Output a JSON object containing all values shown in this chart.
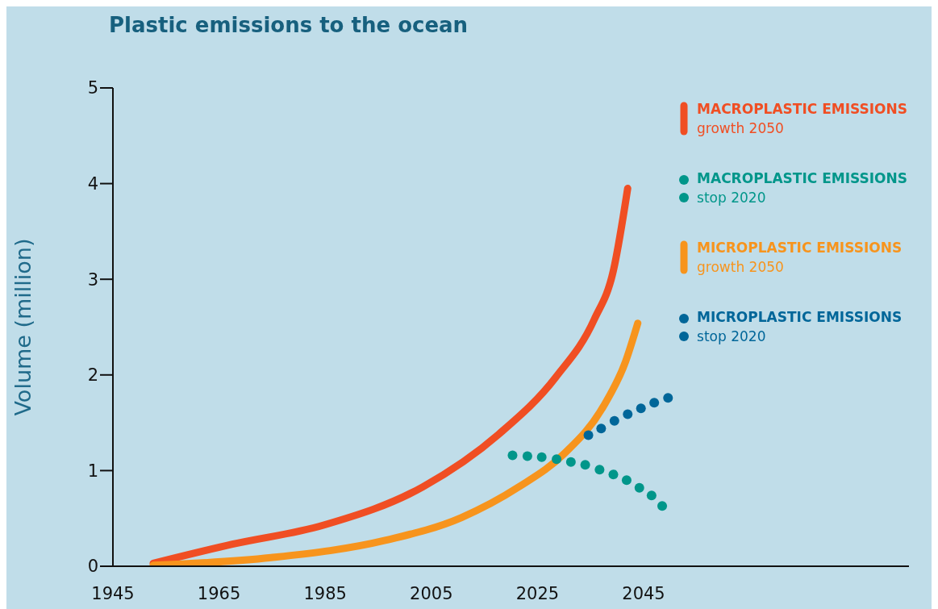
{
  "chart_data": {
    "type": "line",
    "title": "Plastic emissions to the ocean",
    "ylabel": "Volume (million)",
    "xlim": [
      1945,
      2095
    ],
    "xticks": [
      1945,
      1965,
      1985,
      2005,
      2025,
      2045
    ],
    "ylim": [
      0,
      5
    ],
    "yticks": [
      0,
      1,
      2,
      3,
      4,
      5
    ],
    "grid": false,
    "legend": "top right",
    "series": [
      {
        "name": "MACROPLASTIC EMISSIONS\ngrowth 2050",
        "color": "#f04e23",
        "x": [
          1952.6,
          1967.5,
          1984.7,
          2003.4,
          2017.7,
          2028.5,
          2035.7,
          2039.3,
          2042
        ],
        "values": [
          0.03,
          0.23,
          0.43,
          0.83,
          1.38,
          1.98,
          2.58,
          3.09,
          3.95
        ]
      },
      {
        "name": "MACROPLASTIC EMISSIONS\nstop 2020",
        "color": "#00968a",
        "type": "scatter",
        "x": [
          2020.3,
          2023.1,
          2025.8,
          2028.6,
          2031.3,
          2034,
          2036.7,
          2039.3,
          2041.8,
          2044.2,
          2046.5,
          2048.5
        ],
        "values": [
          1.16,
          1.15,
          1.14,
          1.12,
          1.09,
          1.06,
          1.01,
          0.96,
          0.9,
          0.82,
          0.74,
          0.63
        ]
      },
      {
        "name": "MICROPLASTIC EMISSIONS\ngrowth 2050",
        "color": "#f7941d",
        "x": [
          1952.6,
          1974.8,
          1996.3,
          2010.7,
          2021.5,
          2030.1,
          2037.3,
          2041.6,
          2043.9
        ],
        "values": [
          0.01,
          0.09,
          0.27,
          0.51,
          0.83,
          1.18,
          1.66,
          2.14,
          2.54
        ]
      },
      {
        "name": "MICROPLASTIC EMISSIONS\nstop 2020",
        "color": "#006699",
        "type": "scatter",
        "x": [
          2034.6,
          2037,
          2039.5,
          2042,
          2044.5,
          2047,
          2049.6
        ],
        "values": [
          1.37,
          1.44,
          1.52,
          1.59,
          1.65,
          1.71,
          1.76
        ]
      }
    ]
  }
}
